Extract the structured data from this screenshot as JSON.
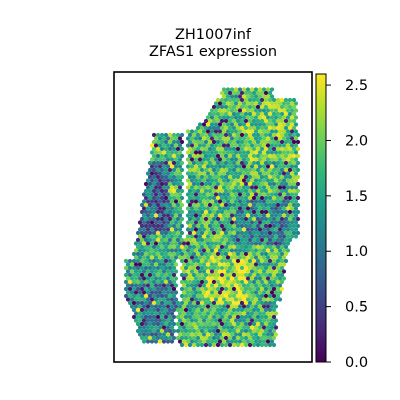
{
  "chart_data": {
    "type": "scatter",
    "title_line1": "ZH1007inf",
    "title_line2": "ZFAS1 expression",
    "xlabel": "",
    "ylabel": "",
    "colorbar": {
      "colormap": "viridis",
      "range": [
        0.0,
        2.6
      ],
      "ticks": [
        0.0,
        0.5,
        1.0,
        1.5,
        2.0,
        2.5
      ],
      "tick_labels": [
        "0.0",
        "0.5",
        "1.0",
        "1.5",
        "2.0",
        "2.5"
      ]
    },
    "colormap_stops": [
      "#440154",
      "#482878",
      "#3e4989",
      "#31688e",
      "#26828e",
      "#1f9e89",
      "#35b779",
      "#6ece58",
      "#b5de2b",
      "#fde725"
    ]
  }
}
